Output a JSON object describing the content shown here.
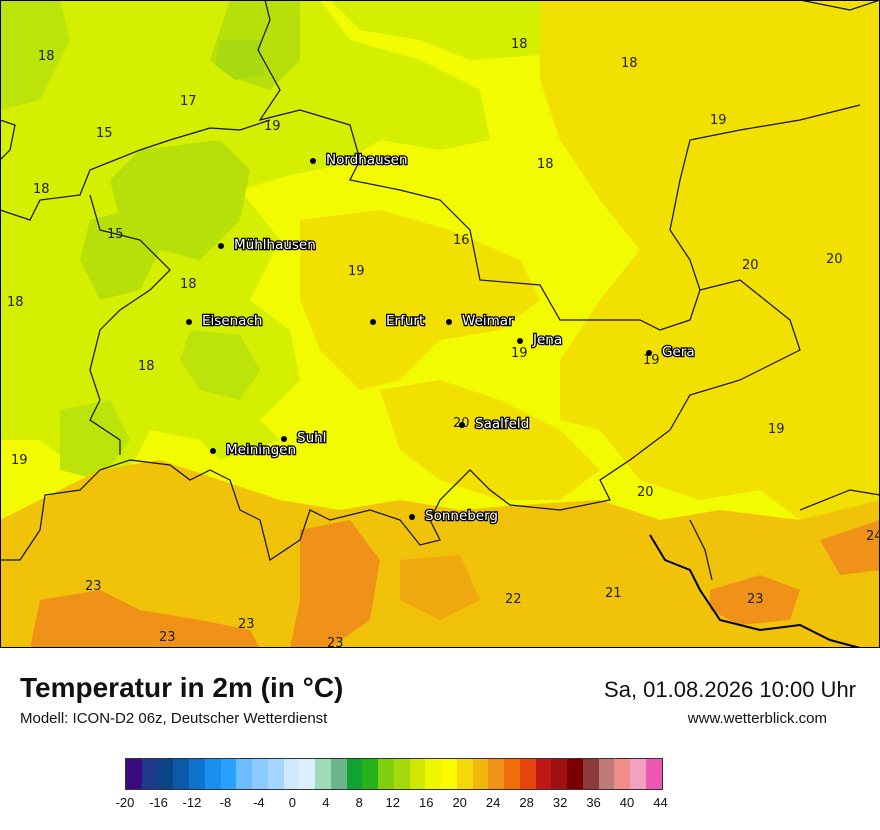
{
  "map": {
    "temperature_labels": [
      {
        "text": "18"
      },
      {
        "text": "17"
      },
      {
        "text": "15"
      },
      {
        "text": "19"
      },
      {
        "text": "18"
      },
      {
        "text": "15"
      },
      {
        "text": "18"
      },
      {
        "text": "18"
      },
      {
        "text": "18"
      },
      {
        "text": "19"
      },
      {
        "text": "18"
      },
      {
        "text": "18"
      },
      {
        "text": "18"
      },
      {
        "text": "19"
      },
      {
        "text": "16"
      },
      {
        "text": "19"
      },
      {
        "text": "20"
      },
      {
        "text": "20"
      },
      {
        "text": "19"
      },
      {
        "text": "19"
      },
      {
        "text": "20"
      },
      {
        "text": "19"
      },
      {
        "text": "20"
      },
      {
        "text": "23"
      },
      {
        "text": "23"
      },
      {
        "text": "23"
      },
      {
        "text": "23"
      },
      {
        "text": "22"
      },
      {
        "text": "21"
      },
      {
        "text": "23"
      },
      {
        "text": "24"
      }
    ],
    "cities": [
      {
        "name": "Nordhausen"
      },
      {
        "name": "Mühlhausen"
      },
      {
        "name": "Eisenach"
      },
      {
        "name": "Erfurt"
      },
      {
        "name": "Weimar"
      },
      {
        "name": "Jena"
      },
      {
        "name": "Gera"
      },
      {
        "name": "Saalfeld"
      },
      {
        "name": "Suhl"
      },
      {
        "name": "Meiningen"
      },
      {
        "name": "Sonneberg"
      }
    ]
  },
  "footer": {
    "title": "Temperatur in 2m (in °C)",
    "model": "Modell: ICON-D2 06z, Deutscher Wetterdienst",
    "datetime": "Sa, 01.08.2026 10:00 Uhr",
    "website": "www.wetterblick.com"
  },
  "colorbar": {
    "colors": [
      "#3a0a80",
      "#1d3a8c",
      "#0c4488",
      "#0b5aa8",
      "#0c74cc",
      "#1a8ff0",
      "#2aa0ff",
      "#6cbdff",
      "#8cc9ff",
      "#a5d6ff",
      "#cfe7ff",
      "#dcefff",
      "#9edcb9",
      "#6db58f",
      "#11a330",
      "#25b21a",
      "#82cf0d",
      "#a4d90b",
      "#d0e800",
      "#eef600",
      "#fbfb00",
      "#f5d80a",
      "#f0b80a",
      "#f19218",
      "#f06e0a",
      "#e84410",
      "#c01818",
      "#a01212",
      "#7a0000",
      "#8c3a3a",
      "#c07a7a",
      "#f08c8c",
      "#f4a0c0",
      "#ee58b0"
    ],
    "ticks": [
      "-20",
      "-16",
      "-12",
      "-8",
      "-4",
      "0",
      "4",
      "8",
      "12",
      "16",
      "20",
      "24",
      "28",
      "32",
      "36",
      "40",
      "44"
    ]
  }
}
